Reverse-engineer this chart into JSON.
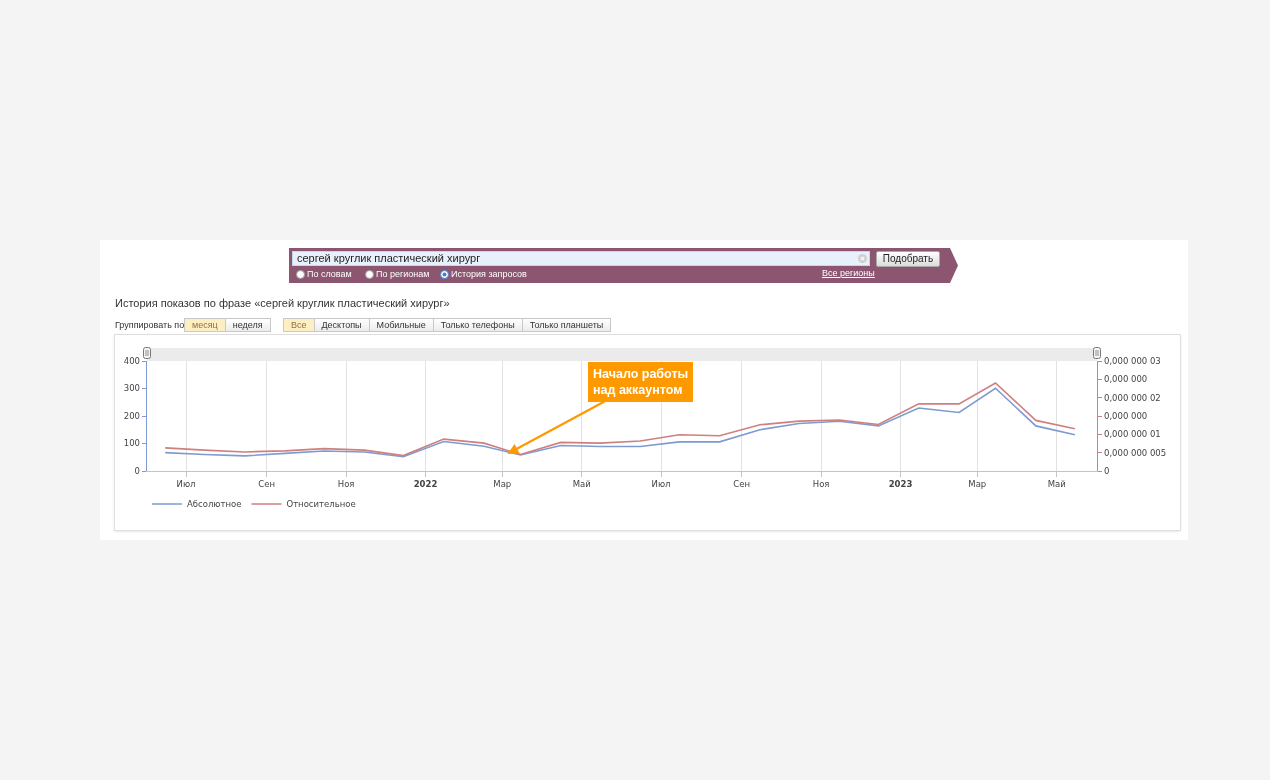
{
  "chart_data": {
    "type": "line",
    "title": "История показов по фразе «сергей круглик пластический хирург»",
    "x": [
      "2021-06-15",
      "2021-07-15",
      "2021-08-15",
      "2021-09-15",
      "2021-10-15",
      "2021-11-15",
      "2021-12-15",
      "2022-01-15",
      "2022-02-15",
      "2022-03-15",
      "2022-04-15",
      "2022-05-15",
      "2022-06-15",
      "2022-07-15",
      "2022-08-15",
      "2022-09-15",
      "2022-10-15",
      "2022-11-15",
      "2022-12-15",
      "2023-01-15",
      "2023-02-15",
      "2023-03-15",
      "2023-04-15",
      "2023-05-15"
    ],
    "series": [
      {
        "name": "Абсолютное",
        "color": "#7d9bd0",
        "values": [
          67,
          60,
          55,
          64,
          73,
          69,
          52,
          107,
          90,
          58,
          93,
          89,
          89,
          106,
          106,
          150,
          173,
          181,
          164,
          229,
          213,
          301,
          164,
          132
        ]
      },
      {
        "name": "Относительное",
        "color": "#d07f7f",
        "axis": "y2",
        "values": [
          6.3e-09,
          5.7e-09,
          5.2e-09,
          5.5e-09,
          6.1e-09,
          5.7e-09,
          4.2e-09,
          8.7e-09,
          7.6e-09,
          4.5e-09,
          7.8e-09,
          7.6e-09,
          8.2e-09,
          9.9e-09,
          9.6e-09,
          1.26e-08,
          1.36e-08,
          1.39e-08,
          1.27e-08,
          1.83e-08,
          1.83e-08,
          2.4e-08,
          1.38e-08,
          1.15e-08
        ]
      }
    ],
    "xlim": [
      "2021-06-01",
      "2023-06-01"
    ],
    "xticks": [
      {
        "value": "2021-07-01",
        "label": "Июл"
      },
      {
        "value": "2021-09-01",
        "label": "Сен"
      },
      {
        "value": "2021-11-01",
        "label": "Ноя"
      },
      {
        "value": "2022-01-01",
        "label": "2022"
      },
      {
        "value": "2022-03-01",
        "label": "Мар"
      },
      {
        "value": "2022-05-01",
        "label": "Май"
      },
      {
        "value": "2022-07-01",
        "label": "Июл"
      },
      {
        "value": "2022-09-01",
        "label": "Сен"
      },
      {
        "value": "2022-11-01",
        "label": "Ноя"
      },
      {
        "value": "2023-01-01",
        "label": "2023"
      },
      {
        "value": "2023-03-01",
        "label": "Мар"
      },
      {
        "value": "2023-05-01",
        "label": "Май"
      }
    ],
    "ylim": [
      0,
      400
    ],
    "yticks": [
      0,
      100,
      200,
      300,
      400
    ],
    "y2lim": [
      0,
      3e-08
    ],
    "y2ticks": [
      0,
      {
        "value": 5e-09,
        "label": "0,000 000 005"
      },
      {
        "value": 1e-08,
        "label": "0,000 000 01"
      },
      {
        "value": 1.5e-08,
        "label": "0,000 000"
      },
      {
        "value": 2e-08,
        "label": "0,000 000 02"
      },
      {
        "value": 2.5e-08,
        "label": "0,000 000"
      },
      {
        "value": 3e-08,
        "label": "0,000 000 03"
      }
    ],
    "grid": "x",
    "legend": "bottom left",
    "annotations": [
      "сергей круглик пластический хирург",
      "По словам",
      "По регионам",
      "История запросов",
      "Все регионы",
      "Подобрать",
      "Группировать по:",
      "месяц",
      "неделя",
      "Все",
      "Десктопы",
      "Мобильные",
      "Только телефоны",
      "Только планшеты",
      {
        "text": "Начало работы над аккаунтом",
        "x": "2022-03-05",
        "y": 62
      }
    ]
  }
}
